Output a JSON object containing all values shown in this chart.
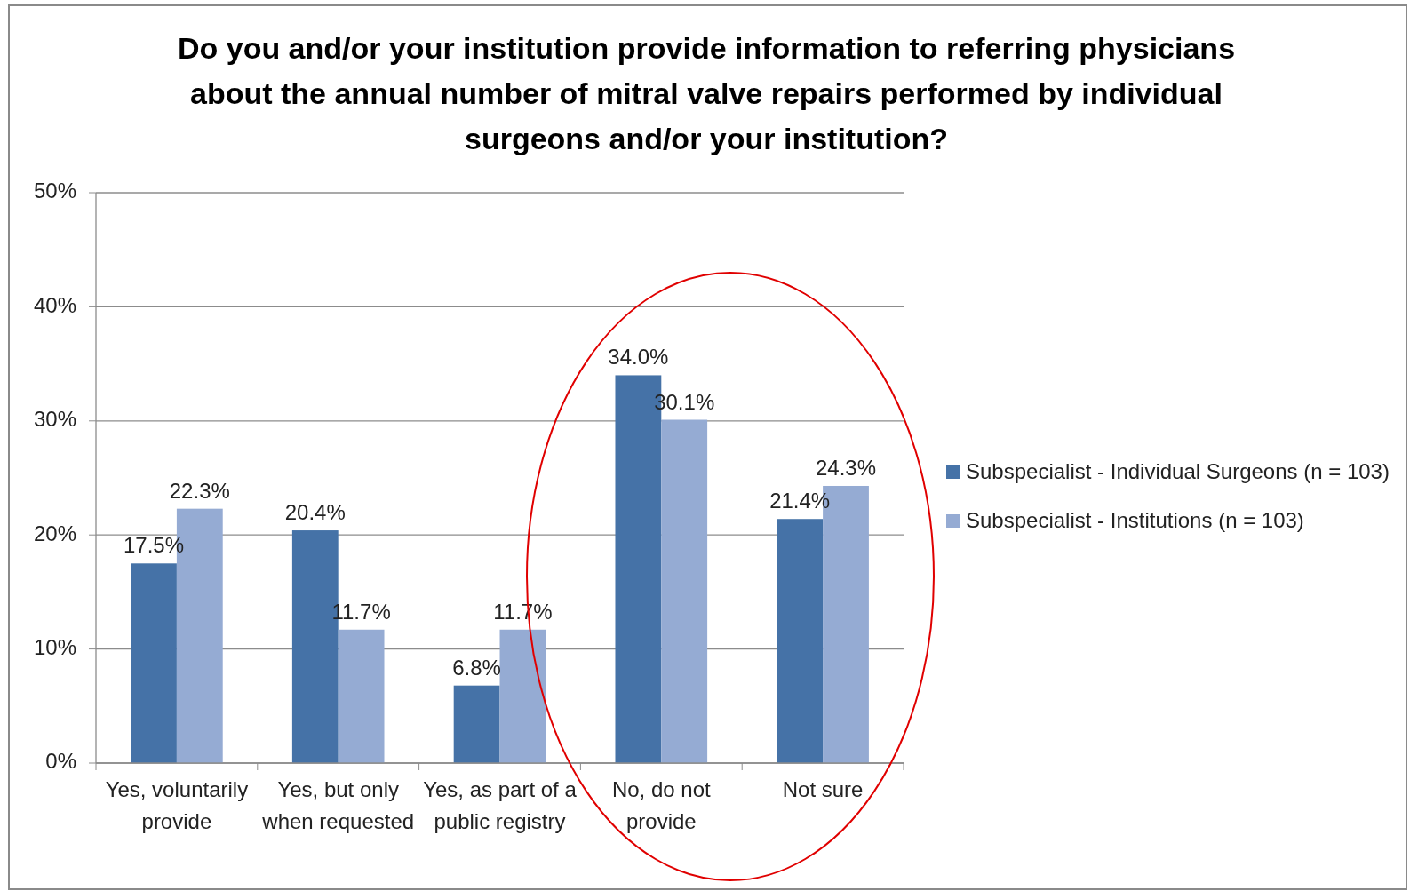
{
  "chart_data": {
    "type": "bar",
    "title": "Do you and/or your institution provide information to referring physicians about the annual number of mitral valve repairs performed by individual surgeons and/or your institution?",
    "categories": [
      "Yes, voluntarily provide",
      "Yes, but only when requested",
      "Yes, as part of a public registry",
      "No, do not provide",
      "Not sure"
    ],
    "series": [
      {
        "name": "Subspecialist - Individual Surgeons (n = 103)",
        "color": "#4572a7",
        "values": [
          17.5,
          20.4,
          6.8,
          34.0,
          21.4
        ],
        "value_labels": [
          "17.5%",
          "20.4%",
          "6.8%",
          "34.0%",
          "21.4%"
        ]
      },
      {
        "name": "Subspecialist - Institutions (n = 103)",
        "color": "#95abd3",
        "values": [
          22.3,
          11.7,
          11.7,
          30.1,
          24.3
        ],
        "value_labels": [
          "22.3%",
          "11.7%",
          "11.7%",
          "30.1%",
          "24.3%"
        ]
      }
    ],
    "ylim": [
      0,
      50
    ],
    "yticks": [
      {
        "value": 0,
        "label": "0%"
      },
      {
        "value": 10,
        "label": "10%"
      },
      {
        "value": 20,
        "label": "20%"
      },
      {
        "value": 30,
        "label": "30%"
      },
      {
        "value": 40,
        "label": "40%"
      },
      {
        "value": 50,
        "label": "50%"
      }
    ],
    "grid": "y",
    "legend": "right"
  }
}
